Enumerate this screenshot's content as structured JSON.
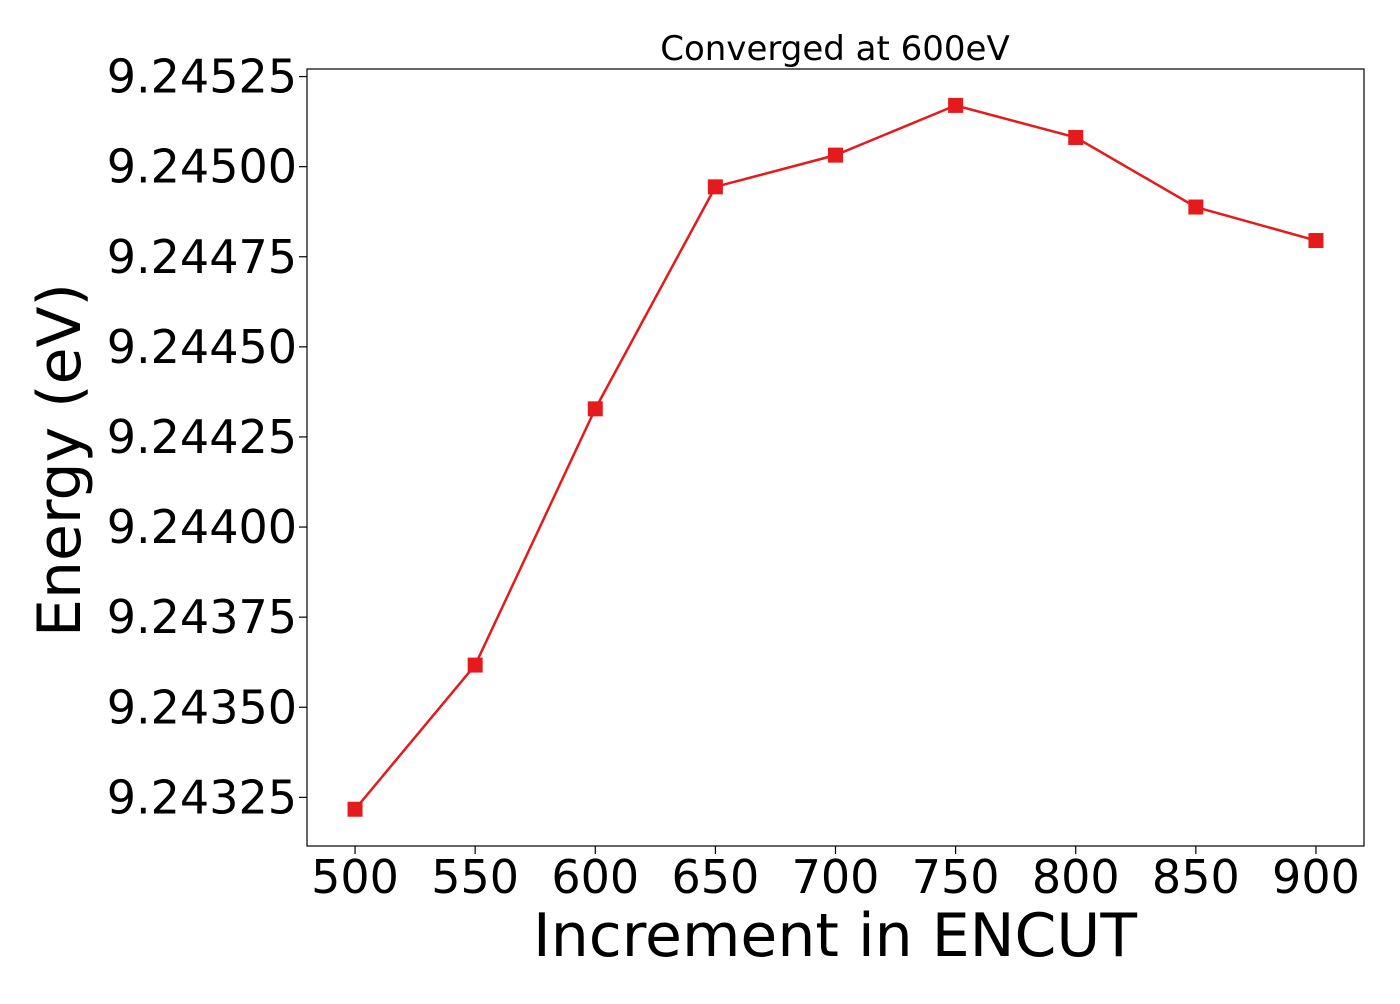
{
  "chart_data": {
    "type": "line",
    "title": "Converged at 600eV",
    "xlabel": "Increment in ENCUT",
    "ylabel": "Energy (eV)",
    "x": [
      500,
      550,
      600,
      650,
      700,
      750,
      800,
      850,
      900
    ],
    "series": [
      {
        "values": [
          9.243217,
          9.243617,
          9.244328,
          9.244944,
          9.245032,
          9.24517,
          9.245081,
          9.244888,
          9.244795
        ],
        "color": "#e41a1c",
        "marker": "square"
      }
    ],
    "xlim": [
      480,
      920
    ],
    "ylim": [
      9.243115,
      9.245271
    ],
    "xticks": [
      500,
      550,
      600,
      650,
      700,
      750,
      800,
      850,
      900
    ],
    "xtick_labels": [
      "500",
      "550",
      "600",
      "650",
      "700",
      "750",
      "800",
      "850",
      "900"
    ],
    "yticks": [
      9.24325,
      9.2435,
      9.24375,
      9.244,
      9.24425,
      9.2445,
      9.24475,
      9.245,
      9.24525
    ],
    "ytick_labels": [
      "9.24325",
      "9.24350",
      "9.24375",
      "9.24400",
      "9.24425",
      "9.24450",
      "9.24475",
      "9.24500",
      "9.24525"
    ],
    "grid": false,
    "legend": "none"
  }
}
